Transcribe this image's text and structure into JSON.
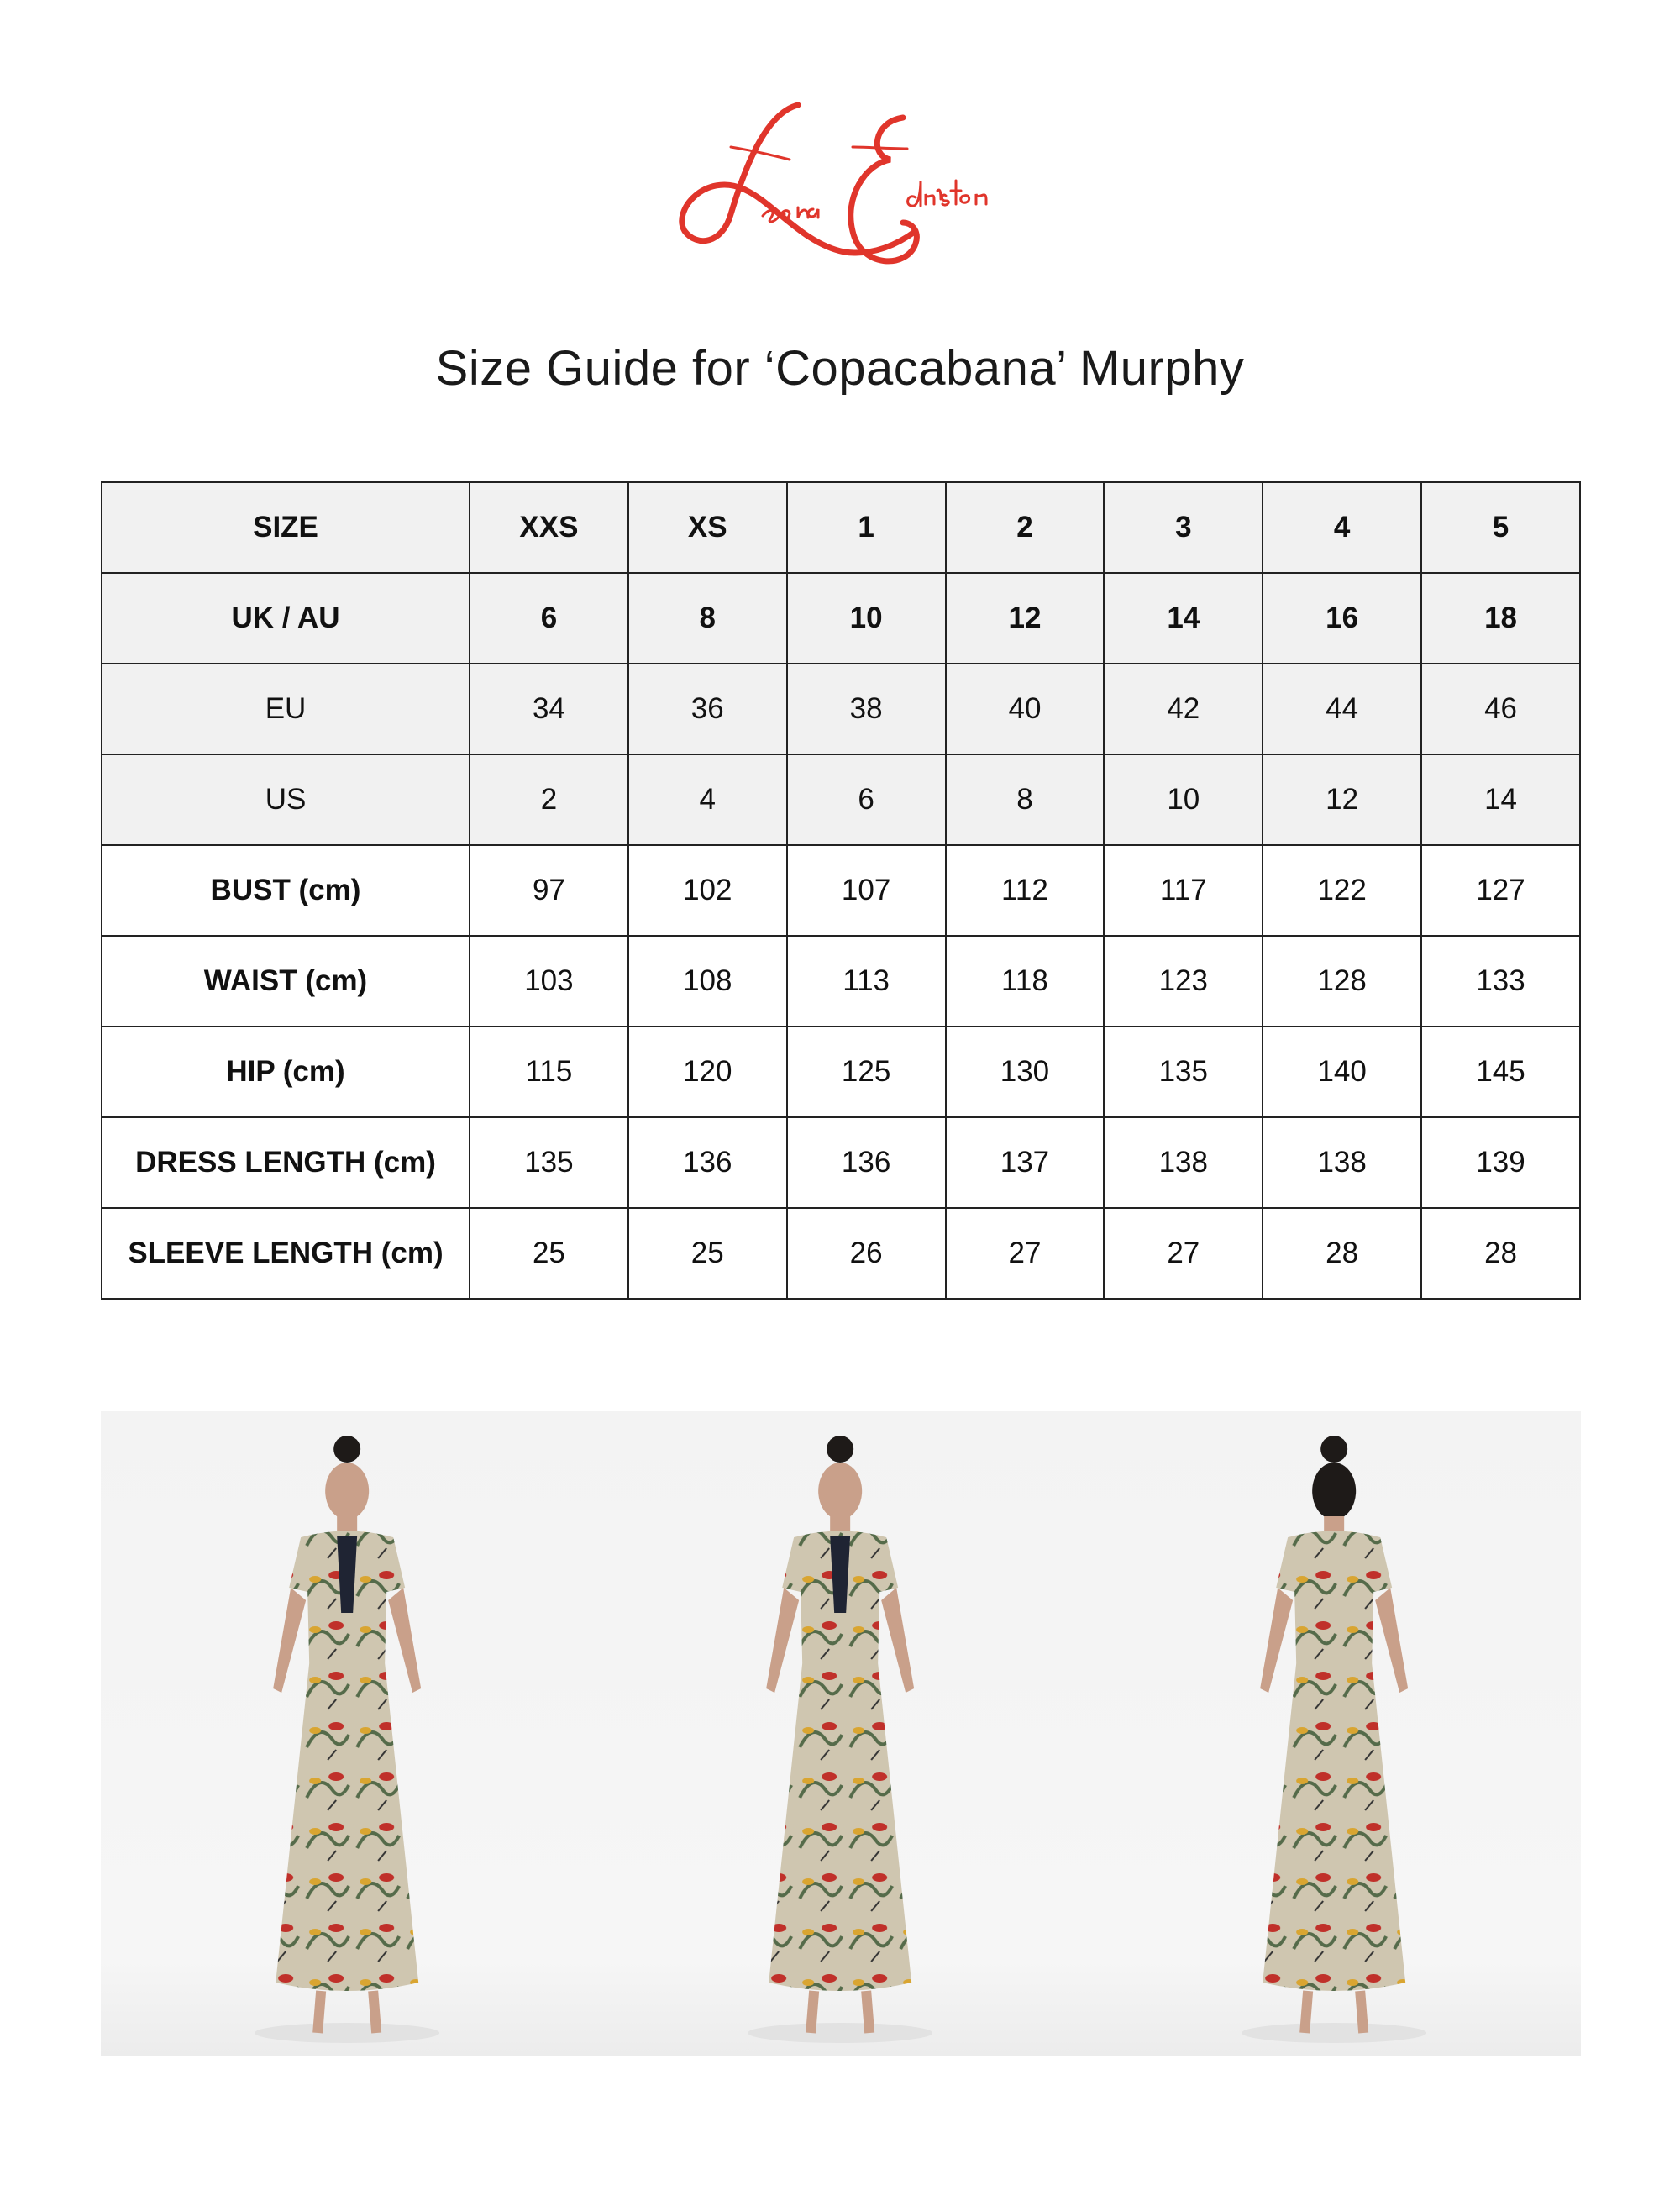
{
  "brand": {
    "logo_text": "Leona Edmiston",
    "logo_color": "#e0352b"
  },
  "title": "Size Guide for ‘Copacabana’ Murphy",
  "table": {
    "rows": [
      {
        "label": "SIZE",
        "values": [
          "XXS",
          "XS",
          "1",
          "2",
          "3",
          "4",
          "5"
        ],
        "style": "header"
      },
      {
        "label": "UK / AU",
        "values": [
          "6",
          "8",
          "10",
          "12",
          "14",
          "16",
          "18"
        ],
        "style": "header"
      },
      {
        "label": "EU",
        "values": [
          "34",
          "36",
          "38",
          "40",
          "42",
          "44",
          "46"
        ],
        "style": "shaded"
      },
      {
        "label": "US",
        "values": [
          "2",
          "4",
          "6",
          "8",
          "10",
          "12",
          "14"
        ],
        "style": "shaded"
      },
      {
        "label": "BUST (cm)",
        "values": [
          "97",
          "102",
          "107",
          "112",
          "117",
          "122",
          "127"
        ],
        "style": "plain"
      },
      {
        "label": "WAIST (cm)",
        "values": [
          "103",
          "108",
          "113",
          "118",
          "123",
          "128",
          "133"
        ],
        "style": "plain"
      },
      {
        "label": "HIP (cm)",
        "values": [
          "115",
          "120",
          "125",
          "130",
          "135",
          "140",
          "145"
        ],
        "style": "plain"
      },
      {
        "label": "DRESS LENGTH (cm)",
        "values": [
          "135",
          "136",
          "136",
          "137",
          "138",
          "138",
          "139"
        ],
        "style": "plain"
      },
      {
        "label": "SLEEVE LENGTH (cm)",
        "values": [
          "25",
          "25",
          "26",
          "27",
          "27",
          "28",
          "28"
        ],
        "style": "plain"
      }
    ]
  },
  "photos": [
    {
      "view": "front"
    },
    {
      "view": "side"
    },
    {
      "view": "back"
    }
  ]
}
